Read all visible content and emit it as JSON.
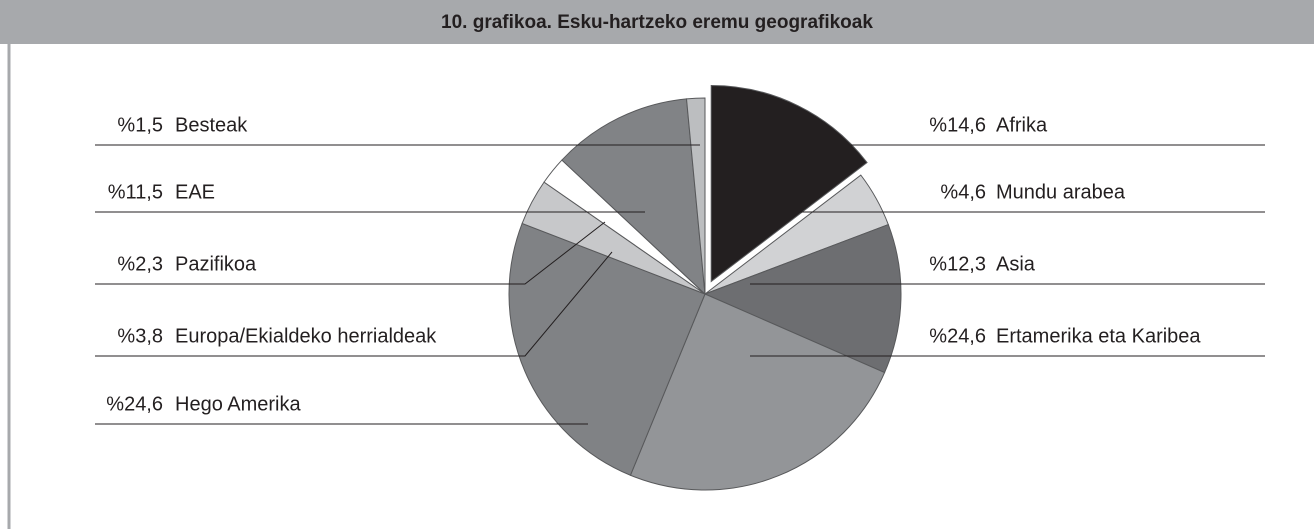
{
  "chart_data": {
    "type": "pie",
    "title": "10. grafikoa. Esku-hartzeko eremu geografikoak",
    "categories": [
      "Afrika",
      "Mundu arabea",
      "Asia",
      "Ertamerika eta Karibea",
      "Hego Amerika",
      "Europa/Ekialdeko herrialdeak",
      "Pazifikoa",
      "EAE",
      "Besteak"
    ],
    "values": [
      14.6,
      4.6,
      12.3,
      24.6,
      24.6,
      3.8,
      2.3,
      11.5,
      1.5
    ],
    "value_labels": [
      "%14,6",
      "%4,6",
      "%12,3",
      "%24,6",
      "%24,6",
      "%3,8",
      "%2,3",
      "%11,5",
      "%1,5"
    ],
    "colors": [
      "#231f20",
      "#d1d2d4",
      "#6d6e71",
      "#939598",
      "#808285",
      "#c7c8ca",
      "#ffffff",
      "#818386",
      "#bcbec0"
    ]
  }
}
